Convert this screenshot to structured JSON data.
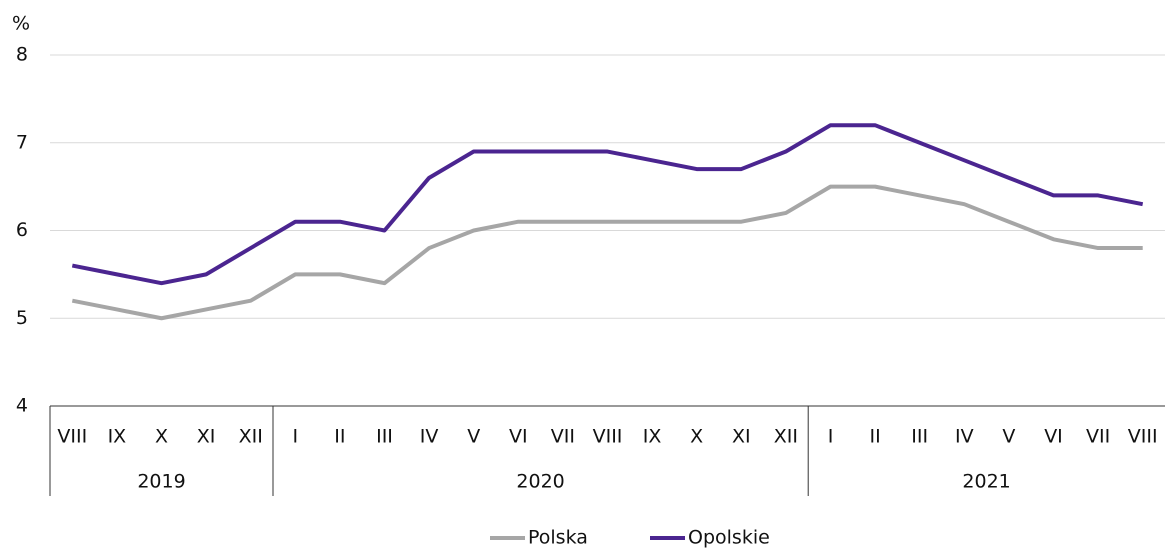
{
  "chart_data": {
    "type": "line",
    "y_unit": "%",
    "categories": [
      "VIII",
      "IX",
      "X",
      "XI",
      "XII",
      "I",
      "II",
      "III",
      "IV",
      "V",
      "VI",
      "VII",
      "VIII",
      "IX",
      "X",
      "XI",
      "XII",
      "I",
      "II",
      "III",
      "IV",
      "V",
      "VI",
      "VII",
      "VIII"
    ],
    "category_groups": [
      {
        "label": "2019",
        "size": 5
      },
      {
        "label": "2020",
        "size": 12
      },
      {
        "label": "2021",
        "size": 8
      }
    ],
    "series": [
      {
        "name": "Polska",
        "color": "#a6a6a6",
        "values": [
          5.2,
          5.1,
          5.0,
          5.1,
          5.2,
          5.5,
          5.5,
          5.4,
          5.8,
          6.0,
          6.1,
          6.1,
          6.1,
          6.1,
          6.1,
          6.1,
          6.2,
          6.5,
          6.5,
          6.4,
          6.3,
          6.1,
          5.9,
          5.8,
          5.8
        ]
      },
      {
        "name": "Opolskie",
        "color": "#4b2590",
        "values": [
          5.6,
          5.5,
          5.4,
          5.5,
          5.8,
          6.1,
          6.1,
          6.0,
          6.6,
          6.9,
          6.9,
          6.9,
          6.9,
          6.8,
          6.7,
          6.7,
          6.9,
          7.2,
          7.2,
          7.0,
          6.8,
          6.6,
          6.4,
          6.4,
          6.3
        ]
      }
    ],
    "ylim": [
      4,
      8
    ],
    "yticks": [
      4,
      5,
      6,
      7,
      8
    ],
    "grid": true,
    "legend": "bottom"
  }
}
